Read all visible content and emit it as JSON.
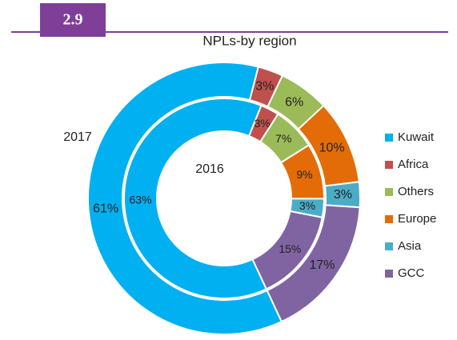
{
  "header": {
    "badge": "2.9"
  },
  "chart_data": {
    "type": "donut",
    "title": "NPLs-by region",
    "categories": [
      "Kuwait",
      "Africa",
      "Others",
      "Europe",
      "Asia",
      "GCC"
    ],
    "colors": [
      "#00b0f0",
      "#c0504d",
      "#9bbb59",
      "#e36c09",
      "#4bacc6",
      "#8064a2"
    ],
    "series": [
      {
        "name": "2017",
        "values": [
          61,
          3,
          6,
          10,
          3,
          17
        ],
        "value_labels": [
          "61%",
          "3%",
          "6%",
          "10%",
          "3%",
          "17%"
        ]
      },
      {
        "name": "2016",
        "values": [
          63,
          3,
          7,
          9,
          3,
          15
        ],
        "value_labels": [
          "63%",
          "3%",
          "7%",
          "9%",
          "3%",
          "15%"
        ]
      }
    ],
    "legend": "right"
  }
}
